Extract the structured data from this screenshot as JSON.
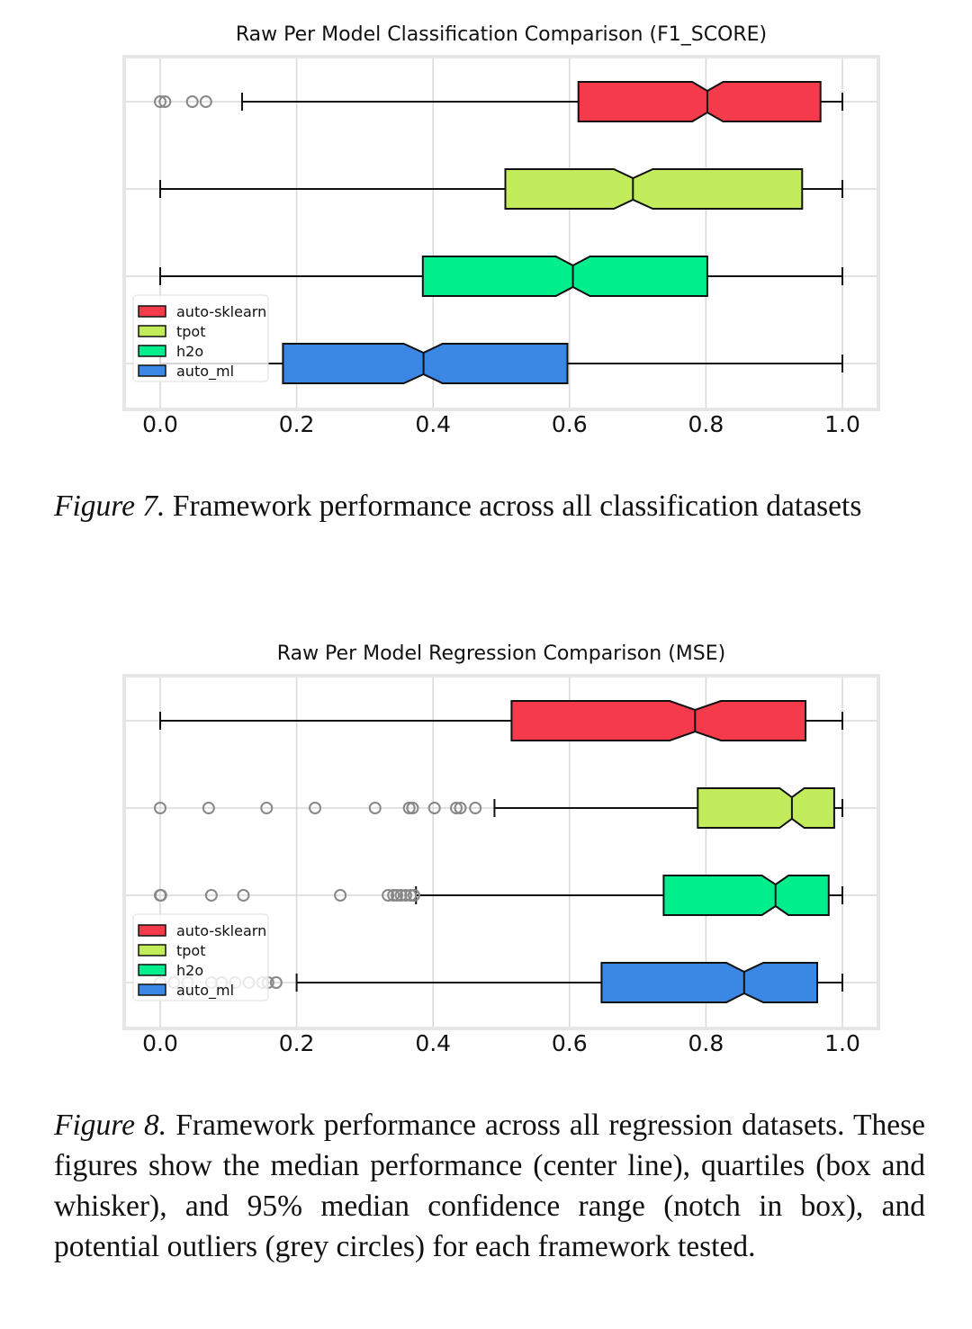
{
  "figures": [
    {
      "label": "Figure 7.",
      "caption": "Framework performance across all classification datasets"
    },
    {
      "label": "Figure 8.",
      "caption": "Framework performance across all regression datasets. These figures show the median performance (center line), quartiles (box and whisker), and 95% median confidence range (notch in box), and potential outliers (grey circles) for each framework tested."
    }
  ],
  "chart_data": [
    {
      "type": "boxplot",
      "title": "Raw Per Model Classification Comparison (F1_SCORE)",
      "orientation": "horizontal",
      "notched": true,
      "xlim": [
        0.0,
        1.0
      ],
      "xticks": [
        0.0,
        0.2,
        0.4,
        0.6,
        0.8,
        1.0
      ],
      "xtick_labels": [
        "0.0",
        "0.2",
        "0.4",
        "0.6",
        "0.8",
        "1.0"
      ],
      "grid": true,
      "legend_position": "lower-left",
      "series": [
        {
          "name": "auto-sklearn",
          "color": "#f43a4b",
          "whisker_low": 0.12,
          "q1": 0.613,
          "notch_low": 0.78,
          "median": 0.802,
          "notch_high": 0.825,
          "q3": 0.968,
          "whisker_high": 1.0,
          "outliers": [
            0.0,
            0.007,
            0.047,
            0.067
          ]
        },
        {
          "name": "tpot",
          "color": "#c2ec5c",
          "whisker_low": 0.0,
          "q1": 0.506,
          "notch_low": 0.665,
          "median": 0.693,
          "notch_high": 0.722,
          "q3": 0.941,
          "whisker_high": 1.0,
          "outliers": []
        },
        {
          "name": "h2o",
          "color": "#00ef8c",
          "whisker_low": 0.0,
          "q1": 0.385,
          "notch_low": 0.58,
          "median": 0.605,
          "notch_high": 0.63,
          "q3": 0.802,
          "whisker_high": 1.0,
          "outliers": []
        },
        {
          "name": "auto_ml",
          "color": "#3a87e4",
          "whisker_low": 0.0,
          "q1": 0.18,
          "notch_low": 0.357,
          "median": 0.386,
          "notch_high": 0.414,
          "q3": 0.597,
          "whisker_high": 1.0,
          "outliers": []
        }
      ]
    },
    {
      "type": "boxplot",
      "title": "Raw Per Model Regression Comparison (MSE)",
      "orientation": "horizontal",
      "notched": true,
      "xlim": [
        0.0,
        1.0
      ],
      "xticks": [
        0.0,
        0.2,
        0.4,
        0.6,
        0.8,
        1.0
      ],
      "xtick_labels": [
        "0.0",
        "0.2",
        "0.4",
        "0.6",
        "0.8",
        "1.0"
      ],
      "grid": true,
      "legend_position": "lower-left",
      "series": [
        {
          "name": "auto-sklearn",
          "color": "#f43a4b",
          "whisker_low": 0.0,
          "q1": 0.515,
          "notch_low": 0.747,
          "median": 0.784,
          "notch_high": 0.822,
          "q3": 0.946,
          "whisker_high": 1.0,
          "outliers": []
        },
        {
          "name": "tpot",
          "color": "#c2ec5c",
          "whisker_low": 0.49,
          "q1": 0.788,
          "notch_low": 0.908,
          "median": 0.926,
          "notch_high": 0.944,
          "q3": 0.988,
          "whisker_high": 1.0,
          "outliers": [
            0.0,
            0.071,
            0.156,
            0.227,
            0.315,
            0.365,
            0.37,
            0.402,
            0.434,
            0.44,
            0.462
          ]
        },
        {
          "name": "h2o",
          "color": "#00ef8c",
          "whisker_low": 0.375,
          "q1": 0.738,
          "notch_low": 0.882,
          "median": 0.902,
          "notch_high": 0.921,
          "q3": 0.98,
          "whisker_high": 1.0,
          "outliers": [
            0.0,
            0.001,
            0.075,
            0.122,
            0.264,
            0.334,
            0.342,
            0.347,
            0.353,
            0.36,
            0.367,
            0.372
          ]
        },
        {
          "name": "auto_ml",
          "color": "#3a87e4",
          "whisker_low": 0.2,
          "q1": 0.647,
          "notch_low": 0.83,
          "median": 0.856,
          "notch_high": 0.884,
          "q3": 0.963,
          "whisker_high": 1.0,
          "outliers": [
            0.0,
            0.02,
            0.04,
            0.075,
            0.09,
            0.11,
            0.13,
            0.15,
            0.158,
            0.17
          ]
        }
      ]
    }
  ]
}
